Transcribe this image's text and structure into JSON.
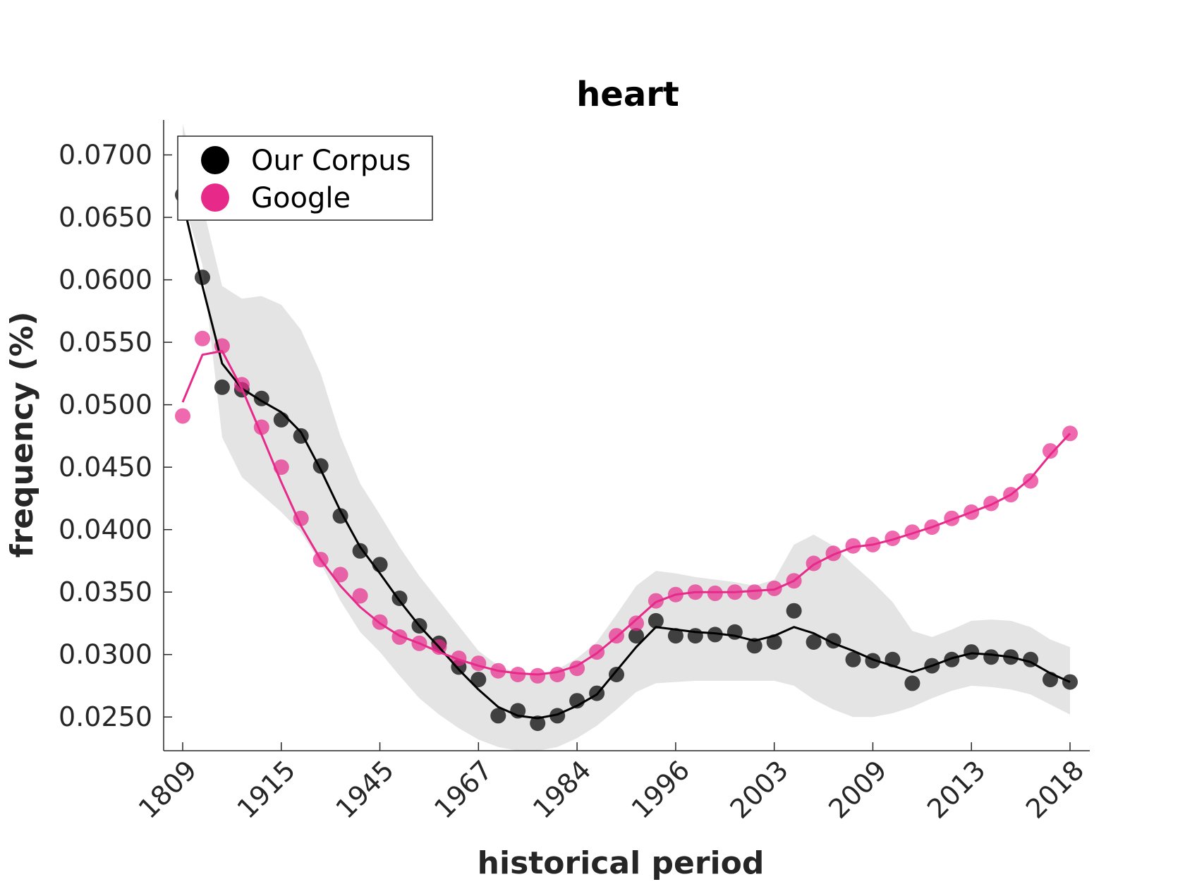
{
  "chart_data": {
    "type": "line",
    "title": "heart",
    "xlabel": "historical period",
    "ylabel": "frequency (%)",
    "ylim": [
      0.0223,
      0.0728
    ],
    "y_ticks": [
      "0.0250",
      "0.0300",
      "0.0350",
      "0.0400",
      "0.0450",
      "0.0500",
      "0.0550",
      "0.0600",
      "0.0650",
      "0.0700"
    ],
    "y_tick_values": [
      0.025,
      0.03,
      0.035,
      0.04,
      0.045,
      0.05,
      0.055,
      0.06,
      0.065,
      0.07
    ],
    "x_ticks": [
      "1809",
      "1915",
      "1945",
      "1967",
      "1984",
      "1996",
      "2003",
      "2009",
      "2013",
      "2018"
    ],
    "x_tick_positions": [
      0,
      5,
      10,
      15,
      20,
      25,
      30,
      35,
      40,
      45
    ],
    "grid": false,
    "legend_position": "top-left",
    "legend": [
      {
        "label": "Our Corpus",
        "color": "#000000"
      },
      {
        "label": "Google",
        "color": "#e7298a"
      }
    ],
    "series": [
      {
        "name": "Our Corpus",
        "color": "#000000",
        "points": [
          0.0668,
          0.0602,
          0.0514,
          0.0512,
          0.0505,
          0.0488,
          0.0475,
          0.0451,
          0.0411,
          0.0383,
          0.0372,
          0.0345,
          0.0323,
          0.0309,
          0.029,
          0.028,
          0.0251,
          0.0255,
          0.0245,
          0.0251,
          0.0263,
          0.0269,
          0.0284,
          0.0315,
          0.0327,
          0.0315,
          0.0315,
          0.0316,
          0.0318,
          0.0307,
          0.031,
          0.0335,
          0.031,
          0.0311,
          0.0296,
          0.0295,
          0.0296,
          0.0277,
          0.0291,
          0.0296,
          0.0302,
          0.0298,
          0.0298,
          0.0296,
          0.028,
          0.0278
        ],
        "smoothed": [
          0.0663,
          0.0595,
          0.0533,
          0.0513,
          0.0503,
          0.0494,
          0.0478,
          0.0448,
          0.0415,
          0.0386,
          0.0365,
          0.0343,
          0.0323,
          0.0306,
          0.0288,
          0.0272,
          0.0258,
          0.0251,
          0.0249,
          0.0252,
          0.0259,
          0.0268,
          0.0287,
          0.0306,
          0.0322,
          0.032,
          0.0318,
          0.0317,
          0.0315,
          0.0311,
          0.0315,
          0.0322,
          0.0317,
          0.0309,
          0.0303,
          0.0296,
          0.0291,
          0.0286,
          0.0291,
          0.0297,
          0.0301,
          0.03,
          0.0298,
          0.0294,
          0.0285,
          0.0278
        ],
        "band_upper": [
          0.0725,
          0.066,
          0.0595,
          0.0585,
          0.0587,
          0.058,
          0.056,
          0.0525,
          0.0475,
          0.0437,
          0.0412,
          0.0386,
          0.0363,
          0.0343,
          0.0323,
          0.0303,
          0.0291,
          0.0285,
          0.0283,
          0.0288,
          0.0297,
          0.031,
          0.0332,
          0.0355,
          0.0367,
          0.0365,
          0.0362,
          0.036,
          0.0358,
          0.0355,
          0.036,
          0.0388,
          0.0396,
          0.0387,
          0.0372,
          0.0358,
          0.0342,
          0.0319,
          0.0314,
          0.032,
          0.0327,
          0.0328,
          0.0327,
          0.0322,
          0.0312,
          0.0306
        ],
        "band_lower": [
          0.0665,
          0.0612,
          0.0474,
          0.0442,
          0.0428,
          0.0414,
          0.0398,
          0.0373,
          0.0343,
          0.0318,
          0.0302,
          0.0283,
          0.0265,
          0.0252,
          0.0241,
          0.0232,
          0.0226,
          0.0223,
          0.0223,
          0.0226,
          0.0233,
          0.0243,
          0.0256,
          0.027,
          0.0277,
          0.0278,
          0.0279,
          0.0279,
          0.0279,
          0.0279,
          0.0279,
          0.0275,
          0.0264,
          0.0256,
          0.025,
          0.025,
          0.0253,
          0.0258,
          0.0265,
          0.0271,
          0.0275,
          0.0274,
          0.0272,
          0.0268,
          0.026,
          0.0252
        ]
      },
      {
        "name": "Google",
        "color": "#e7298a",
        "points": [
          0.0491,
          0.0553,
          0.0547,
          0.0516,
          0.0482,
          0.045,
          0.0409,
          0.0376,
          0.0364,
          0.0347,
          0.0326,
          0.0314,
          0.0309,
          0.0306,
          0.0297,
          0.0293,
          0.0287,
          0.0284,
          0.0283,
          0.0284,
          0.0289,
          0.0302,
          0.0315,
          0.0325,
          0.0343,
          0.0348,
          0.035,
          0.0349,
          0.035,
          0.035,
          0.0353,
          0.0359,
          0.0373,
          0.0381,
          0.0387,
          0.0388,
          0.0393,
          0.0398,
          0.0402,
          0.0409,
          0.0414,
          0.0421,
          0.0428,
          0.0439,
          0.0463,
          0.0477
        ],
        "smoothed": [
          0.0502,
          0.054,
          0.0543,
          0.0513,
          0.0476,
          0.0438,
          0.0403,
          0.0376,
          0.0355,
          0.0338,
          0.0325,
          0.0315,
          0.0309,
          0.0302,
          0.0296,
          0.0291,
          0.0287,
          0.0285,
          0.0284,
          0.0286,
          0.0291,
          0.0301,
          0.0314,
          0.0328,
          0.0342,
          0.0348,
          0.035,
          0.035,
          0.035,
          0.0351,
          0.0352,
          0.0359,
          0.0372,
          0.038,
          0.0386,
          0.0388,
          0.0392,
          0.0397,
          0.0402,
          0.0408,
          0.0414,
          0.042,
          0.0428,
          0.0441,
          0.046,
          0.0477
        ]
      }
    ]
  }
}
